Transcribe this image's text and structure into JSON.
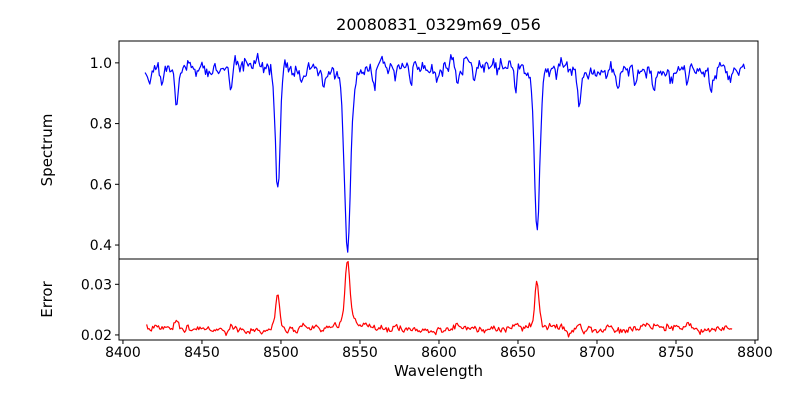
{
  "figure": {
    "title": "20080831_0329m69_056",
    "background": "#ffffff",
    "spectrum_color": "#0000ff",
    "error_color": "#ff0000",
    "axis_color": "#000000"
  },
  "chart_data": {
    "type": "line",
    "title": "20080831_0329m69_056",
    "xlabel": "Wavelength",
    "grid": false,
    "legend": "none",
    "xlim": [
      8397.5,
      8801.9
    ],
    "xticks": [
      {
        "v": 8400,
        "label": "8400"
      },
      {
        "v": 8450,
        "label": "8450"
      },
      {
        "v": 8500,
        "label": "8500"
      },
      {
        "v": 8550,
        "label": "8550"
      },
      {
        "v": 8600,
        "label": "8600"
      },
      {
        "v": 8650,
        "label": "8650"
      },
      {
        "v": 8700,
        "label": "8700"
      },
      {
        "v": 8750,
        "label": "8750"
      },
      {
        "v": 8800,
        "label": "8800"
      }
    ],
    "panels": [
      {
        "id": "spectrum",
        "ylabel": "Spectrum",
        "line_color": "#0000ff",
        "ylim": [
          0.354,
          1.072
        ],
        "yticks": [
          {
            "v": 0.4,
            "label": "0.4"
          },
          {
            "v": 0.6,
            "label": "0.6"
          },
          {
            "v": 0.8,
            "label": "0.8"
          },
          {
            "v": 1.0,
            "label": "1.0"
          }
        ],
        "signal": {
          "kind": "absorption",
          "x_start": 8414,
          "x_end": 8794,
          "step": 0.75,
          "continuum": 0.985,
          "noise": {
            "seed": 11,
            "fine_sigma": 0.011,
            "fine_ar": 0.25,
            "coarse_sigma": 0.004,
            "coarse_ar": 0.9
          },
          "features": [
            {
              "c": 8498.0,
              "a": 0.42,
              "s": 1.4,
              "w": 0.1
            },
            {
              "c": 8542.1,
              "a": 0.6,
              "s": 1.9,
              "w": 0.1
            },
            {
              "c": 8662.1,
              "a": 0.55,
              "s": 1.7,
              "w": 0.1
            },
            {
              "c": 8417.0,
              "a": 0.04,
              "s": 0.9,
              "w": 0.05
            },
            {
              "c": 8424.5,
              "a": 0.05,
              "s": 0.9,
              "w": 0.05
            },
            {
              "c": 8434.0,
              "a": 0.13,
              "s": 1.0,
              "w": 0.05
            },
            {
              "c": 8447.0,
              "a": 0.04,
              "s": 0.8,
              "w": 0.05
            },
            {
              "c": 8456.5,
              "a": 0.04,
              "s": 0.8,
              "w": 0.05
            },
            {
              "c": 8468.4,
              "a": 0.09,
              "s": 0.9,
              "w": 0.05
            },
            {
              "c": 8482.0,
              "a": 0.04,
              "s": 0.8,
              "w": 0.05
            },
            {
              "c": 8514.1,
              "a": 0.08,
              "s": 0.9,
              "w": 0.05
            },
            {
              "c": 8527.0,
              "a": 0.05,
              "s": 0.8,
              "w": 0.05
            },
            {
              "c": 8559.0,
              "a": 0.06,
              "s": 0.9,
              "w": 0.05
            },
            {
              "c": 8572.0,
              "a": 0.04,
              "s": 0.8,
              "w": 0.05
            },
            {
              "c": 8582.3,
              "a": 0.06,
              "s": 0.9,
              "w": 0.05
            },
            {
              "c": 8598.8,
              "a": 0.04,
              "s": 0.8,
              "w": 0.05
            },
            {
              "c": 8611.8,
              "a": 0.07,
              "s": 0.9,
              "w": 0.05
            },
            {
              "c": 8622.1,
              "a": 0.05,
              "s": 0.8,
              "w": 0.05
            },
            {
              "c": 8648.5,
              "a": 0.08,
              "s": 0.9,
              "w": 0.05
            },
            {
              "c": 8674.7,
              "a": 0.05,
              "s": 0.8,
              "w": 0.05
            },
            {
              "c": 8688.6,
              "a": 0.13,
              "s": 1.1,
              "w": 0.05
            },
            {
              "c": 8713.2,
              "a": 0.05,
              "s": 0.8,
              "w": 0.05
            },
            {
              "c": 8724.0,
              "a": 0.04,
              "s": 0.8,
              "w": 0.05
            },
            {
              "c": 8736.0,
              "a": 0.05,
              "s": 0.8,
              "w": 0.05
            },
            {
              "c": 8747.0,
              "a": 0.04,
              "s": 0.8,
              "w": 0.05
            },
            {
              "c": 8757.1,
              "a": 0.05,
              "s": 0.8,
              "w": 0.05
            },
            {
              "c": 8772.0,
              "a": 0.05,
              "s": 0.8,
              "w": 0.05
            },
            {
              "c": 8784.0,
              "a": 0.04,
              "s": 0.8,
              "w": 0.05
            }
          ]
        }
      },
      {
        "id": "error",
        "ylabel": "Error",
        "line_color": "#ff0000",
        "ylim": [
          0.019,
          0.035
        ],
        "yticks": [
          {
            "v": 0.02,
            "label": "0.02"
          },
          {
            "v": 0.03,
            "label": "0.03"
          }
        ],
        "signal": {
          "kind": "emission",
          "x_start": 8415,
          "x_end": 8786,
          "step": 0.75,
          "continuum": 0.0212,
          "noise": {
            "seed": 7,
            "fine_sigma": 0.00032,
            "fine_ar": 0.3,
            "coarse_sigma": 0.00012,
            "coarse_ar": 0.9
          },
          "features": [
            {
              "c": 8498.0,
              "a": 0.007,
              "s": 1.1,
              "w": 0.25
            },
            {
              "c": 8542.1,
              "a": 0.0133,
              "s": 1.4,
              "w": 0.25
            },
            {
              "c": 8662.1,
              "a": 0.0092,
              "s": 1.2,
              "w": 0.25
            },
            {
              "c": 8434.0,
              "a": 0.0012,
              "s": 1.0,
              "w": 0.15
            },
            {
              "c": 8468.4,
              "a": 0.0008,
              "s": 0.9,
              "w": 0.15
            },
            {
              "c": 8514.1,
              "a": 0.0007,
              "s": 0.9,
              "w": 0.15
            },
            {
              "c": 8611.8,
              "a": 0.0005,
              "s": 0.9,
              "w": 0.15
            },
            {
              "c": 8648.5,
              "a": 0.0006,
              "s": 0.9,
              "w": 0.15
            },
            {
              "c": 8688.6,
              "a": 0.0011,
              "s": 1.0,
              "w": 0.15
            },
            {
              "c": 8757.1,
              "a": 0.0004,
              "s": 0.9,
              "w": 0.15
            }
          ]
        }
      }
    ]
  }
}
